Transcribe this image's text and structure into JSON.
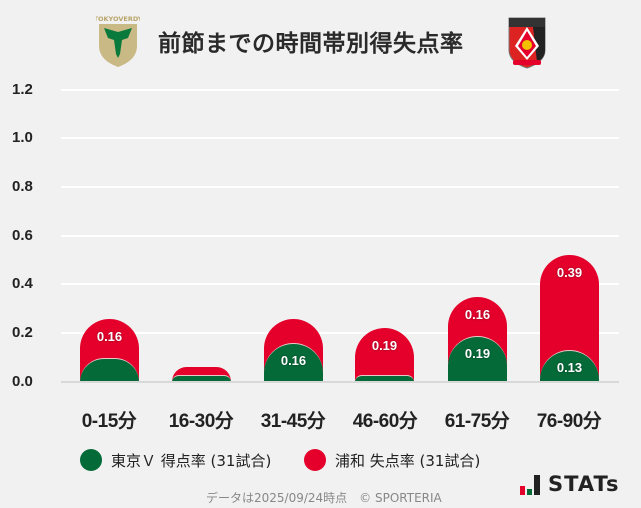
{
  "header": {
    "title": "前節までの時間帯別得失点率",
    "left_logo": "tokyo-verdy-crest",
    "left_logo_text": "TOKYOVERDY",
    "right_logo": "urawa-reds-crest"
  },
  "colors": {
    "verdy_green": "#046a38",
    "urawa_red": "#e4002b",
    "background": "#f1f1f1",
    "gridline": "#ffffff"
  },
  "chart_data": {
    "type": "bar",
    "stacked": true,
    "title": "前節までの時間帯別得失点率",
    "xlabel": "",
    "ylabel": "",
    "ylim": [
      0,
      1.2
    ],
    "yticks": [
      "0.0",
      "0.2",
      "0.4",
      "0.6",
      "0.8",
      "1.0",
      "1.2"
    ],
    "grid": true,
    "legend_position": "bottom",
    "categories": [
      "0-15分",
      "16-30分",
      "31-45分",
      "46-60分",
      "61-75分",
      "76-90分"
    ],
    "series": [
      {
        "name": "東京Ｖ 得点率 (31試合)",
        "color": "#046a38",
        "values": [
          0.1,
          0.03,
          0.16,
          0.03,
          0.19,
          0.13
        ],
        "labels": [
          "",
          "",
          "0.16",
          "",
          "0.19",
          "0.13"
        ]
      },
      {
        "name": "浦和 失点率 (31試合)",
        "color": "#e4002b",
        "values": [
          0.16,
          0.03,
          0.1,
          0.19,
          0.16,
          0.39
        ],
        "labels": [
          "0.16",
          "",
          "",
          "0.19",
          "0.16",
          "0.39"
        ]
      }
    ]
  },
  "legend": {
    "items": [
      {
        "label": "東京Ｖ 得点率 (31試合)",
        "color": "#046a38"
      },
      {
        "label": "浦和 失点率 (31試合)",
        "color": "#e4002b"
      }
    ]
  },
  "footer": {
    "note": "データは2025/09/24時点　© SPORTERIA",
    "brand": "STATs"
  }
}
